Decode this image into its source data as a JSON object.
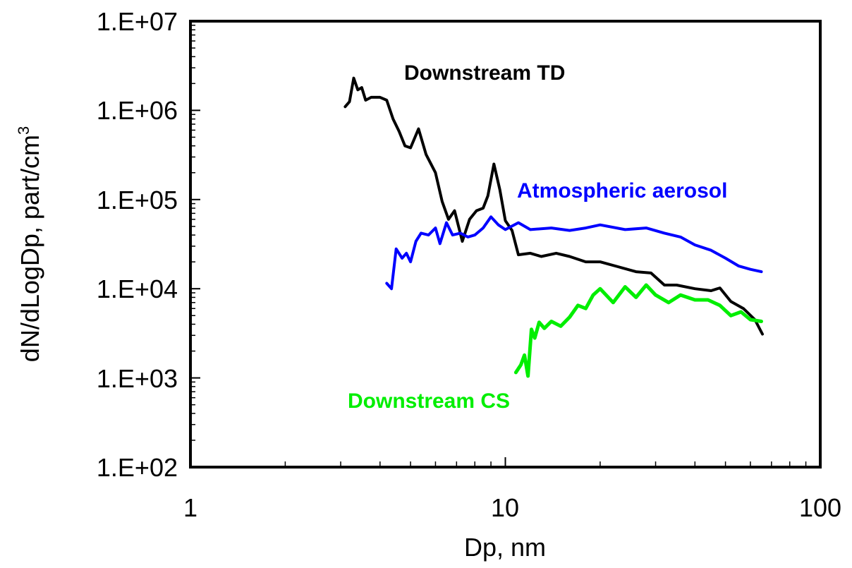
{
  "chart_data": {
    "type": "line",
    "xlabel": "Dp, nm",
    "ylabel": "dN/dLogDp, part/cm",
    "ylabel_superscript": "3",
    "x_scale": "log",
    "y_scale": "log",
    "xlim": [
      1,
      100
    ],
    "ylim": [
      100,
      10000000
    ],
    "x_tick_labels": [
      "1",
      "10",
      "100"
    ],
    "y_tick_labels": [
      "1.E+02",
      "1.E+03",
      "1.E+04",
      "1.E+05",
      "1.E+06",
      "1.E+07"
    ],
    "grid": false,
    "legend": "none (series labelled inline)",
    "series": [
      {
        "name": "Downstream TD",
        "color": "#000000",
        "points": [
          [
            3.1,
            1100000
          ],
          [
            3.2,
            1250000
          ],
          [
            3.3,
            2300000
          ],
          [
            3.4,
            1700000
          ],
          [
            3.5,
            1800000
          ],
          [
            3.6,
            1300000
          ],
          [
            3.75,
            1400000
          ],
          [
            4.0,
            1400000
          ],
          [
            4.2,
            1300000
          ],
          [
            4.4,
            800000
          ],
          [
            4.6,
            580000
          ],
          [
            4.8,
            400000
          ],
          [
            5.0,
            380000
          ],
          [
            5.3,
            620000
          ],
          [
            5.6,
            320000
          ],
          [
            6.0,
            200000
          ],
          [
            6.3,
            95000
          ],
          [
            6.6,
            60000
          ],
          [
            6.9,
            75000
          ],
          [
            7.3,
            34000
          ],
          [
            7.7,
            60000
          ],
          [
            8.1,
            75000
          ],
          [
            8.5,
            80000
          ],
          [
            8.8,
            110000
          ],
          [
            9.2,
            250000
          ],
          [
            9.6,
            130000
          ],
          [
            10.0,
            58000
          ],
          [
            10.5,
            45000
          ],
          [
            11.0,
            24000
          ],
          [
            12.0,
            25000
          ],
          [
            13.0,
            23000
          ],
          [
            14.5,
            25000
          ],
          [
            16.0,
            23000
          ],
          [
            18.0,
            20000
          ],
          [
            20.0,
            20000
          ],
          [
            23.0,
            17500
          ],
          [
            26.0,
            15500
          ],
          [
            29.0,
            15000
          ],
          [
            32.0,
            11000
          ],
          [
            35.0,
            11000
          ],
          [
            40.0,
            10000
          ],
          [
            45.0,
            9500
          ],
          [
            48.0,
            10200
          ],
          [
            52.0,
            7200
          ],
          [
            57.0,
            6000
          ],
          [
            62.0,
            4500
          ],
          [
            65.5,
            3100
          ]
        ]
      },
      {
        "name": "Atmospheric aerosol",
        "color": "#0000ff",
        "points": [
          [
            4.2,
            11500
          ],
          [
            4.35,
            10000
          ],
          [
            4.5,
            28000
          ],
          [
            4.7,
            22000
          ],
          [
            4.85,
            25000
          ],
          [
            5.0,
            20000
          ],
          [
            5.2,
            34000
          ],
          [
            5.4,
            42000
          ],
          [
            5.7,
            40000
          ],
          [
            6.0,
            48000
          ],
          [
            6.2,
            32000
          ],
          [
            6.5,
            55000
          ],
          [
            6.8,
            40000
          ],
          [
            7.2,
            42000
          ],
          [
            7.6,
            38000
          ],
          [
            8.0,
            40000
          ],
          [
            8.5,
            48000
          ],
          [
            9.0,
            64000
          ],
          [
            9.5,
            52000
          ],
          [
            10.0,
            46000
          ],
          [
            11.0,
            55000
          ],
          [
            12.0,
            46000
          ],
          [
            14.0,
            48000
          ],
          [
            16.0,
            45000
          ],
          [
            18.0,
            48000
          ],
          [
            20.0,
            52000
          ],
          [
            24.0,
            46000
          ],
          [
            28.0,
            48000
          ],
          [
            32.0,
            42000
          ],
          [
            36.0,
            38000
          ],
          [
            40.0,
            31000
          ],
          [
            45.0,
            27000
          ],
          [
            50.0,
            22000
          ],
          [
            55.0,
            18000
          ],
          [
            60.0,
            16500
          ],
          [
            65.0,
            15500
          ]
        ]
      },
      {
        "name": "Downstream CS",
        "color": "#00ee00",
        "points": [
          [
            10.8,
            1150
          ],
          [
            11.2,
            1400
          ],
          [
            11.5,
            1800
          ],
          [
            11.8,
            1050
          ],
          [
            12.1,
            3500
          ],
          [
            12.4,
            2800
          ],
          [
            12.8,
            4200
          ],
          [
            13.3,
            3600
          ],
          [
            14.0,
            4300
          ],
          [
            15.0,
            3800
          ],
          [
            16.0,
            4800
          ],
          [
            17.0,
            6500
          ],
          [
            18.0,
            6000
          ],
          [
            19.0,
            8500
          ],
          [
            20.0,
            10000
          ],
          [
            22.0,
            7000
          ],
          [
            24.0,
            10500
          ],
          [
            26.0,
            8000
          ],
          [
            28.0,
            11000
          ],
          [
            30.0,
            8500
          ],
          [
            33.0,
            7000
          ],
          [
            36.0,
            8500
          ],
          [
            40.0,
            7500
          ],
          [
            44.0,
            7500
          ],
          [
            48.0,
            6500
          ],
          [
            52.0,
            5000
          ],
          [
            56.0,
            5500
          ],
          [
            60.0,
            4500
          ],
          [
            65.0,
            4300
          ]
        ]
      }
    ],
    "annotations": [
      {
        "text": "Downstream TD",
        "color": "#000000"
      },
      {
        "text": "Atmospheric aerosol",
        "color": "#0000ff"
      },
      {
        "text": "Downstream CS",
        "color": "#00ee00"
      }
    ]
  }
}
